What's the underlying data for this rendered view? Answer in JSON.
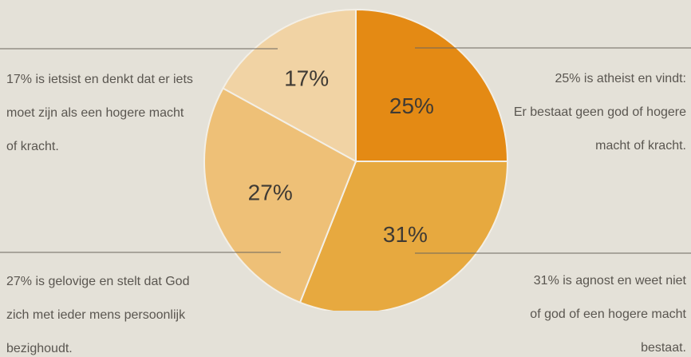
{
  "chart_data": {
    "type": "pie",
    "title": "",
    "slices": [
      {
        "label": "25%",
        "value": 25,
        "color": "#e48a14"
      },
      {
        "label": "31%",
        "value": 31,
        "color": "#e7a93f"
      },
      {
        "label": "27%",
        "value": 27,
        "color": "#eec077"
      },
      {
        "label": "17%",
        "value": 17,
        "color": "#f1d3a4"
      }
    ],
    "annotations": [
      {
        "id": "atheist",
        "lines": [
          "25% is atheist en vindt:",
          "Er bestaat geen god of hogere",
          "macht of kracht."
        ]
      },
      {
        "id": "agnost",
        "lines": [
          "31% is agnost en weet niet",
          "of god of een hogere macht",
          "bestaat."
        ]
      },
      {
        "id": "gelovige",
        "lines": [
          "27% is gelovige en stelt dat God",
          "zich met ieder mens persoonlijk",
          "bezighoudt."
        ]
      },
      {
        "id": "ietsist",
        "lines": [
          "17% is ietsist en denkt dat er iets",
          "moet zijn als een hogere macht",
          "of kracht."
        ]
      }
    ]
  }
}
